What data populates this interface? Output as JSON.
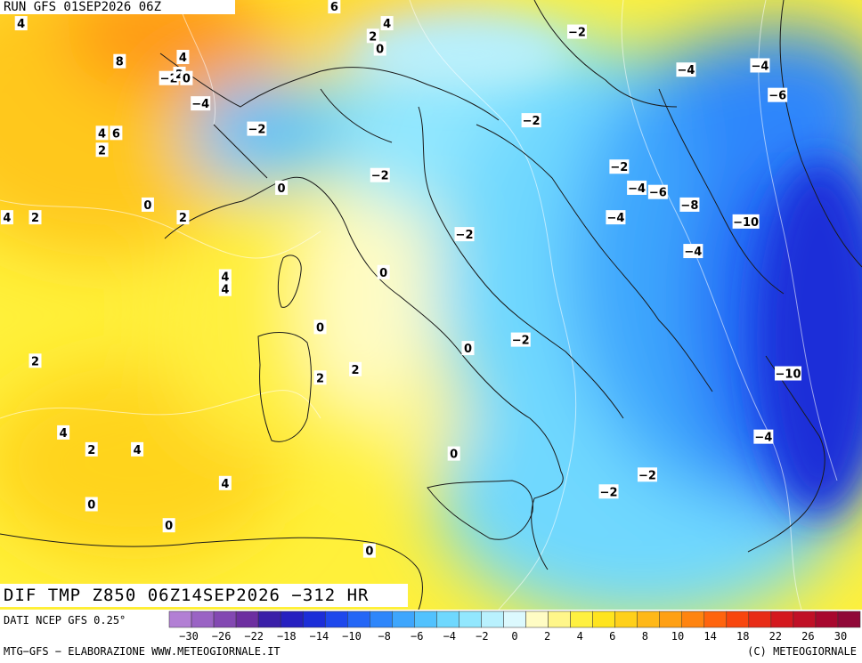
{
  "header": {
    "run_title": "RUN GFS 01SEP2026 06Z"
  },
  "field_title": "DIF TMP Z850 06Z14SEP2026 −312 HR",
  "source_label": "DATI NCEP GFS 0.25°",
  "footer": {
    "left": "MTG−GFS − ELABORAZIONE WWW.METEOGIORNALE.IT",
    "right": "(C) METEOGIORNALE"
  },
  "legend": {
    "colors": [
      "#b27fd4",
      "#9a63c4",
      "#8348b2",
      "#6d2fa0",
      "#3a1fa8",
      "#2620c0",
      "#1c2ed8",
      "#1e48ec",
      "#2466f6",
      "#2e86fb",
      "#3ea6fd",
      "#52c2fe",
      "#6fd8fe",
      "#92e7fe",
      "#b9f1fe",
      "#dcf9fe",
      "#fffcc4",
      "#fff68a",
      "#fff040",
      "#ffe41e",
      "#ffd01a",
      "#ffb818",
      "#ffa014",
      "#ff8410",
      "#ff640e",
      "#f8460e",
      "#e82c16",
      "#d4181e",
      "#c01026",
      "#a8082e",
      "#900838"
    ],
    "tick_labels": [
      "−30",
      "−26",
      "−22",
      "−18",
      "−14",
      "−10",
      "−8",
      "−6",
      "−4",
      "−2",
      "0",
      "2",
      "4",
      "6",
      "8",
      "10",
      "14",
      "18",
      "22",
      "26",
      "30"
    ]
  },
  "contour_labels": [
    {
      "text": "6",
      "lon": 12.3,
      "lat": 48.6
    },
    {
      "text": "4",
      "lon": 3.4,
      "lat": 48.2
    },
    {
      "text": "4",
      "lon": 13.8,
      "lat": 48.2
    },
    {
      "text": "2",
      "lon": 13.4,
      "lat": 47.9
    },
    {
      "text": "0",
      "lon": 13.6,
      "lat": 47.6
    },
    {
      "text": "8",
      "lon": 6.2,
      "lat": 47.3
    },
    {
      "text": "4",
      "lon": 8.0,
      "lat": 47.4
    },
    {
      "text": "−2",
      "lon": 7.6,
      "lat": 46.9
    },
    {
      "text": "2",
      "lon": 7.9,
      "lat": 47.0
    },
    {
      "text": "0",
      "lon": 8.1,
      "lat": 46.9
    },
    {
      "text": "−4",
      "lon": 8.5,
      "lat": 46.3
    },
    {
      "text": "4",
      "lon": 5.7,
      "lat": 45.6
    },
    {
      "text": "6",
      "lon": 6.1,
      "lat": 45.6
    },
    {
      "text": "2",
      "lon": 5.7,
      "lat": 45.2
    },
    {
      "text": "−2",
      "lon": 10.1,
      "lat": 45.7
    },
    {
      "text": "0",
      "lon": 10.8,
      "lat": 44.3
    },
    {
      "text": "0",
      "lon": 7.0,
      "lat": 43.9
    },
    {
      "text": "2",
      "lon": 8.0,
      "lat": 43.6
    },
    {
      "text": "−2",
      "lon": 13.6,
      "lat": 44.6
    },
    {
      "text": "2",
      "lon": 3.8,
      "lat": 43.6
    },
    {
      "text": "4",
      "lon": 3.0,
      "lat": 43.6
    },
    {
      "text": "−2",
      "lon": 16.0,
      "lat": 43.2
    },
    {
      "text": "0",
      "lon": 13.7,
      "lat": 42.3
    },
    {
      "text": "4",
      "lon": 9.2,
      "lat": 42.2
    },
    {
      "text": "4",
      "lon": 9.2,
      "lat": 41.9
    },
    {
      "text": "0",
      "lon": 11.9,
      "lat": 41.0
    },
    {
      "text": "0",
      "lon": 16.1,
      "lat": 40.5
    },
    {
      "text": "−2",
      "lon": 17.6,
      "lat": 40.7
    },
    {
      "text": "2",
      "lon": 3.8,
      "lat": 40.2
    },
    {
      "text": "2",
      "lon": 12.9,
      "lat": 40.0
    },
    {
      "text": "2",
      "lon": 11.9,
      "lat": 39.8
    },
    {
      "text": "4",
      "lon": 4.6,
      "lat": 38.5
    },
    {
      "text": "2",
      "lon": 5.4,
      "lat": 38.1
    },
    {
      "text": "4",
      "lon": 6.7,
      "lat": 38.1
    },
    {
      "text": "0",
      "lon": 15.7,
      "lat": 38.0
    },
    {
      "text": "4",
      "lon": 9.2,
      "lat": 37.3
    },
    {
      "text": "0",
      "lon": 5.4,
      "lat": 36.8
    },
    {
      "text": "0",
      "lon": 7.6,
      "lat": 36.3
    },
    {
      "text": "0",
      "lon": 13.3,
      "lat": 35.7
    },
    {
      "text": "−2",
      "lon": 21.2,
      "lat": 37.5
    },
    {
      "text": "−2",
      "lon": 20.1,
      "lat": 37.1
    },
    {
      "text": "−4",
      "lon": 24.5,
      "lat": 38.4
    },
    {
      "text": "−2",
      "lon": 19.2,
      "lat": 48.0
    },
    {
      "text": "−4",
      "lon": 22.3,
      "lat": 47.1
    },
    {
      "text": "−4",
      "lon": 24.4,
      "lat": 47.2
    },
    {
      "text": "−6",
      "lon": 24.9,
      "lat": 46.5
    },
    {
      "text": "−2",
      "lon": 17.9,
      "lat": 45.9
    },
    {
      "text": "−2",
      "lon": 20.4,
      "lat": 44.8
    },
    {
      "text": "−4",
      "lon": 20.9,
      "lat": 44.3
    },
    {
      "text": "−6",
      "lon": 21.5,
      "lat": 44.2
    },
    {
      "text": "−8",
      "lon": 22.4,
      "lat": 43.9
    },
    {
      "text": "−4",
      "lon": 20.3,
      "lat": 43.6
    },
    {
      "text": "−10",
      "lon": 24.0,
      "lat": 43.5
    },
    {
      "text": "−4",
      "lon": 22.5,
      "lat": 42.8
    },
    {
      "text": "−10",
      "lon": 25.2,
      "lat": 39.9
    }
  ]
}
